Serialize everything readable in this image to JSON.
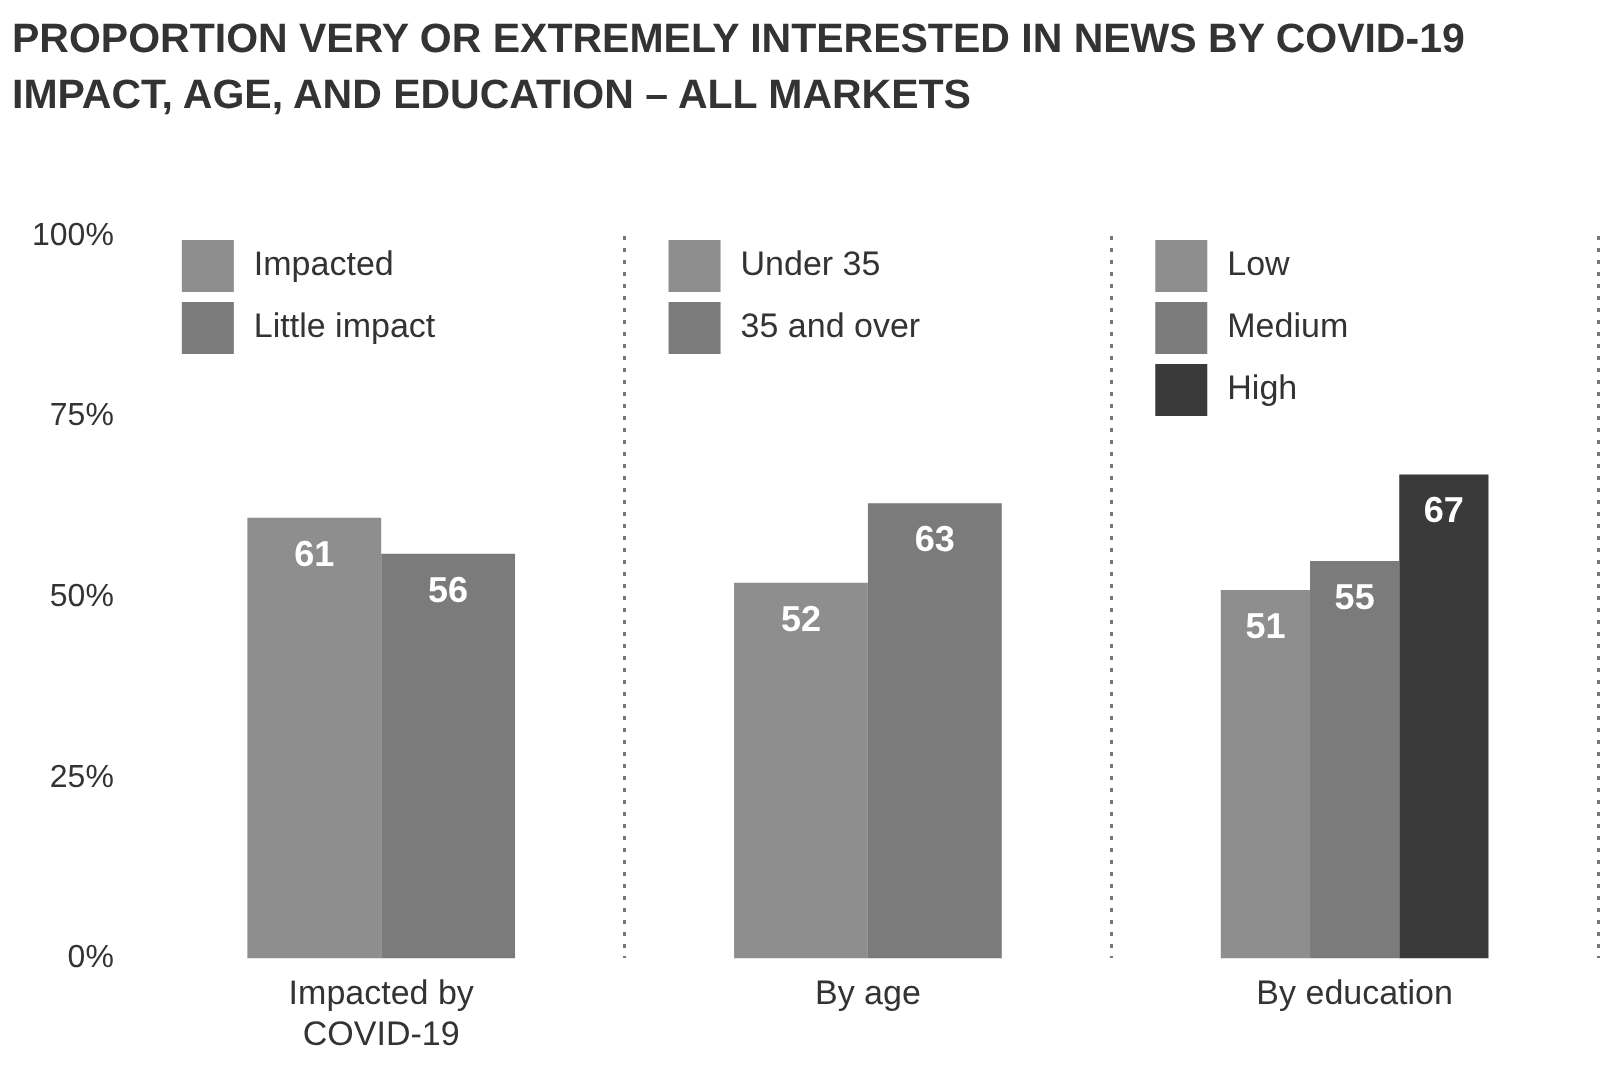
{
  "chart_data": {
    "type": "bar",
    "title": "PROPORTION VERY OR EXTREMELY INTERESTED IN NEWS BY COVID-19 IMPACT, AGE, AND EDUCATION – ALL MARKETS",
    "categories": [
      "Impacted by COVID-19",
      "By age",
      "By education"
    ],
    "series": [
      {
        "name": "Impacted",
        "color": "#8e8e8e",
        "values": [
          61,
          null,
          null
        ]
      },
      {
        "name": "Little impact",
        "color": "#7b7b7b",
        "values": [
          56,
          null,
          null
        ]
      },
      {
        "name": "Under 35",
        "color": "#8e8e8e",
        "values": [
          null,
          52,
          null
        ]
      },
      {
        "name": "35 and over",
        "color": "#7b7b7b",
        "values": [
          null,
          63,
          null
        ]
      },
      {
        "name": "Low",
        "color": "#8e8e8e",
        "values": [
          null,
          null,
          51
        ]
      },
      {
        "name": "Medium",
        "color": "#7b7b7b",
        "values": [
          null,
          null,
          55
        ]
      },
      {
        "name": "High",
        "color": "#3a3a3a",
        "values": [
          null,
          null,
          67
        ]
      }
    ],
    "ylim": [
      0,
      100
    ],
    "yticks": [
      {
        "value": 0,
        "label": "0%"
      },
      {
        "value": 25,
        "label": "25%"
      },
      {
        "value": 50,
        "label": "50%"
      },
      {
        "value": 75,
        "label": "75%"
      },
      {
        "value": 100,
        "label": "100%"
      }
    ],
    "grid": "x",
    "legend": "top left",
    "data_labels": true
  }
}
